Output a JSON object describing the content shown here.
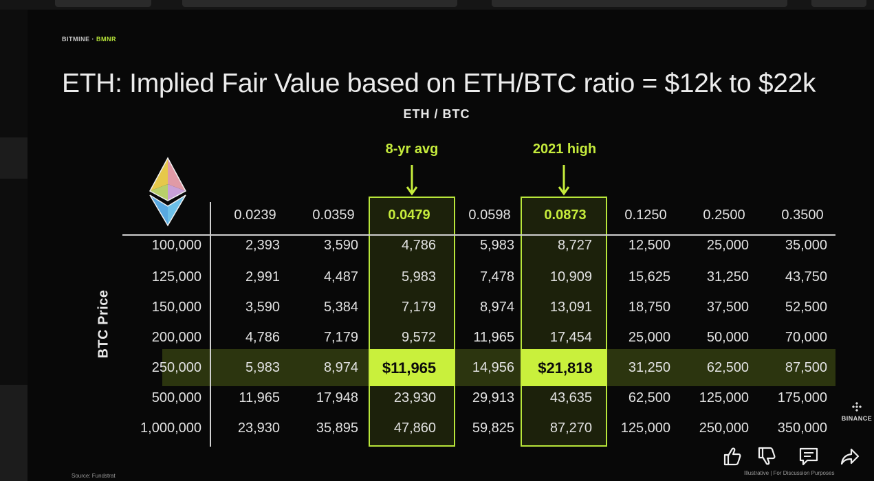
{
  "brand": {
    "name": "BITMINE",
    "separator": " · ",
    "ticker": "BMNR"
  },
  "title": "ETH: Implied Fair Value based on ETH/BTC ratio = $12k to $22k",
  "column_axis_label": "ETH / BTC",
  "row_axis_label": "BTC Price",
  "highlight_labels": {
    "avg": "8-yr avg",
    "high": "2021 high"
  },
  "columns": [
    "0.0239",
    "0.0359",
    "0.0479",
    "0.0598",
    "0.0873",
    "0.1250",
    "0.2500",
    "0.3500"
  ],
  "rows": [
    {
      "btc": "100,000",
      "values": [
        "2,393",
        "3,590",
        "4,786",
        "5,983",
        "8,727",
        "12,500",
        "25,000",
        "35,000"
      ]
    },
    {
      "btc": "125,000",
      "values": [
        "2,991",
        "4,487",
        "5,983",
        "7,478",
        "10,909",
        "15,625",
        "31,250",
        "43,750"
      ]
    },
    {
      "btc": "150,000",
      "values": [
        "3,590",
        "5,384",
        "7,179",
        "8,974",
        "13,091",
        "18,750",
        "37,500",
        "52,500"
      ]
    },
    {
      "btc": "200,000",
      "values": [
        "4,786",
        "7,179",
        "9,572",
        "11,965",
        "17,454",
        "25,000",
        "50,000",
        "70,000"
      ]
    },
    {
      "btc": "250,000",
      "values": [
        "5,983",
        "8,974",
        "$11,965",
        "14,956",
        "$21,818",
        "31,250",
        "62,500",
        "87,500"
      ]
    },
    {
      "btc": "500,000",
      "values": [
        "11,965",
        "17,948",
        "23,930",
        "29,913",
        "43,635",
        "62,500",
        "125,000",
        "175,000"
      ]
    },
    {
      "btc": "1,000,000",
      "values": [
        "23,930",
        "35,895",
        "47,860",
        "59,825",
        "87,270",
        "125,000",
        "250,000",
        "350,000"
      ]
    }
  ],
  "highlighted_columns": [
    "0.0479",
    "0.0873"
  ],
  "highlighted_row": "250,000",
  "source": "Source: Fundstrat",
  "footnote": "Illustrative | For Discussion Purposes",
  "watermark": "BINANCE",
  "actions": [
    {
      "name": "like",
      "icon": "thumbs-up-icon"
    },
    {
      "name": "dislike",
      "icon": "thumbs-down-icon"
    },
    {
      "name": "comment",
      "icon": "comment-icon"
    },
    {
      "name": "share",
      "icon": "share-icon"
    }
  ],
  "colors": {
    "accent": "#c6ec3c",
    "background": "#080808",
    "text": "#e2e2e2"
  }
}
